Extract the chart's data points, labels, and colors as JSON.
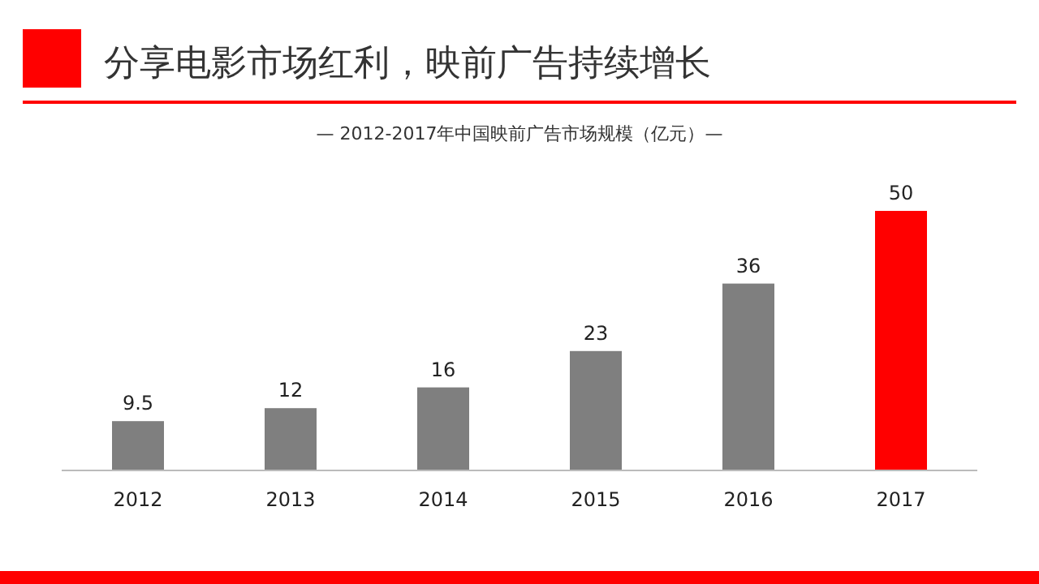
{
  "chart_data": {
    "type": "bar",
    "title": "分享电影市场红利，映前广告持续增长",
    "subtitle": "— 2012-2017年中国映前广告市场规模（亿元）—",
    "categories": [
      "2012",
      "2013",
      "2014",
      "2015",
      "2016",
      "2017"
    ],
    "values": [
      9.5,
      12,
      16,
      23,
      36,
      50
    ],
    "colors": [
      "#7f7f7f",
      "#7f7f7f",
      "#7f7f7f",
      "#7f7f7f",
      "#7f7f7f",
      "#ff0000"
    ],
    "data_labels": true
  }
}
